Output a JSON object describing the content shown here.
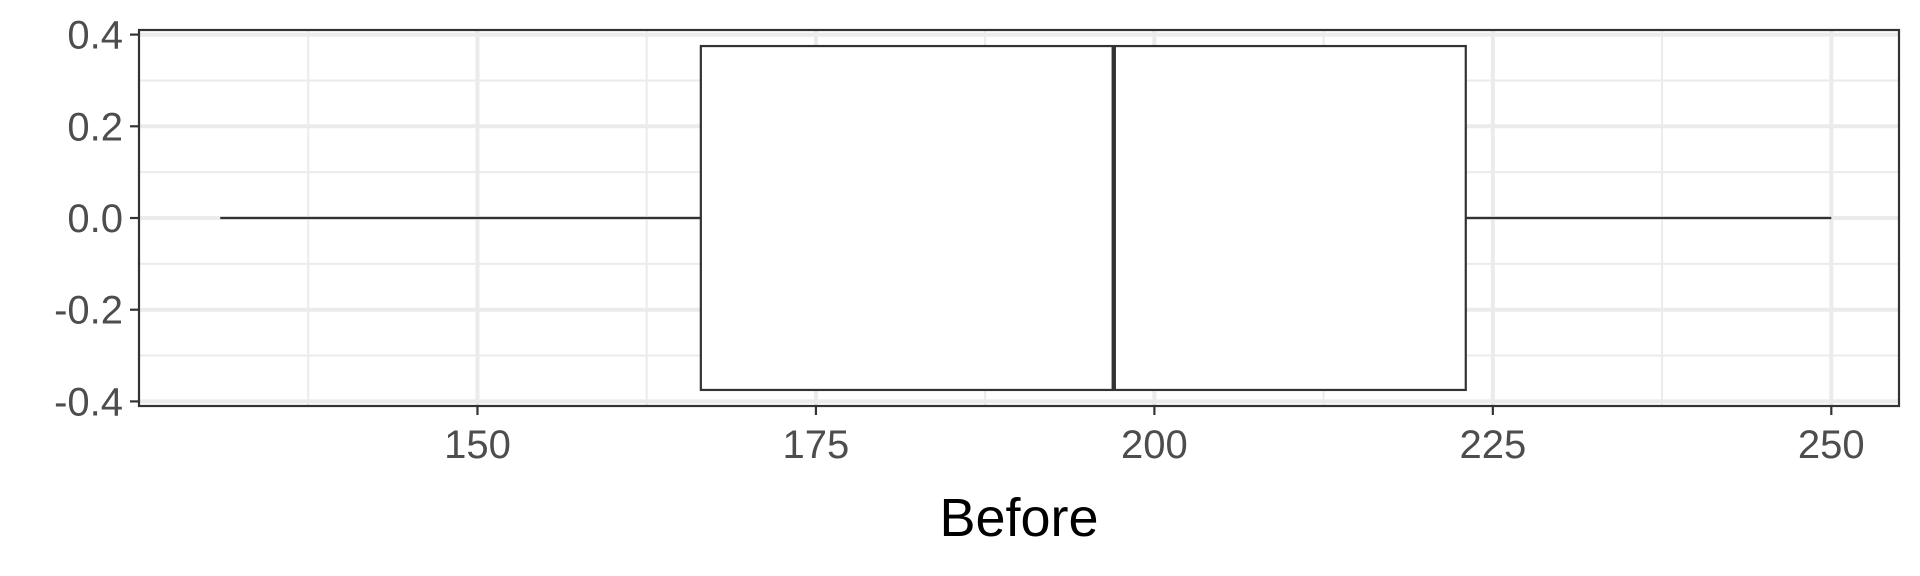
{
  "chart_data": {
    "type": "boxplot",
    "title": "",
    "xlabel": "Before",
    "ylabel": "",
    "xlim": [
      125,
      255
    ],
    "ylim": [
      -0.41,
      0.41
    ],
    "x_ticks": [
      150,
      175,
      200,
      225,
      250
    ],
    "x_tick_labels": [
      "150",
      "175",
      "200",
      "225",
      "250"
    ],
    "y_ticks": [
      0.4,
      0.2,
      0.0,
      -0.2,
      -0.4
    ],
    "y_tick_labels": [
      "0.4",
      "0.2",
      "0.0",
      "-0.2",
      "-0.4"
    ],
    "grid": true,
    "orientation": "horizontal",
    "box": {
      "min": 131,
      "q1": 166.5,
      "median": 197,
      "q3": 223,
      "max": 250,
      "y_center": 0,
      "half_width": 0.375
    },
    "colors": {
      "panel_background": "#ffffff",
      "panel_border": "#333333",
      "grid_major": "#ebebeb",
      "grid_minor": "#ebebeb",
      "box_fill": "#ffffff",
      "box_stroke": "#333333",
      "tick_label": "#4d4d4d",
      "axis_title": "#000000"
    }
  }
}
